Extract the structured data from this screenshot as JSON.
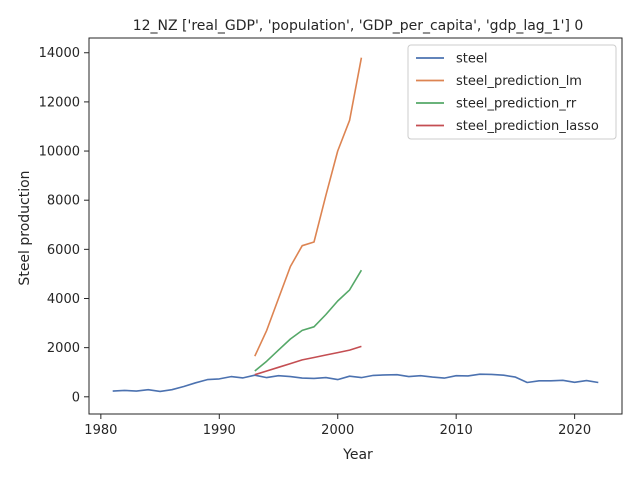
{
  "chart_data": {
    "type": "line",
    "title": "12_NZ ['real_GDP', 'population', 'GDP_per_capita', 'gdp_lag_1'] 0",
    "xlabel": "Year",
    "ylabel": "Steel production",
    "xlim": [
      1979,
      2024
    ],
    "ylim": [
      -700,
      14600
    ],
    "xticks": [
      1980,
      1990,
      2000,
      2010,
      2020
    ],
    "yticks": [
      0,
      2000,
      4000,
      6000,
      8000,
      10000,
      12000,
      14000
    ],
    "grid": false,
    "legend": {
      "position": "top-right"
    },
    "series": [
      {
        "name": "steel",
        "color": "#4c72b0",
        "x": [
          1981,
          1982,
          1983,
          1984,
          1985,
          1986,
          1987,
          1988,
          1989,
          1990,
          1991,
          1992,
          1993,
          1994,
          1995,
          1996,
          1997,
          1998,
          1999,
          2000,
          2001,
          2002,
          2003,
          2004,
          2005,
          2006,
          2007,
          2008,
          2009,
          2010,
          2011,
          2012,
          2013,
          2014,
          2015,
          2016,
          2017,
          2018,
          2019,
          2020,
          2021,
          2022
        ],
        "y": [
          230,
          260,
          230,
          290,
          220,
          290,
          420,
          570,
          700,
          730,
          820,
          770,
          880,
          780,
          860,
          820,
          760,
          750,
          780,
          700,
          840,
          780,
          870,
          890,
          900,
          820,
          860,
          800,
          760,
          860,
          850,
          920,
          910,
          880,
          800,
          580,
          650,
          650,
          670,
          590,
          660,
          580
        ]
      },
      {
        "name": "steel_prediction_lm",
        "color": "#dd8452",
        "x": [
          1993,
          1994,
          1995,
          1996,
          1997,
          1998,
          1999,
          2000,
          2001,
          2002
        ],
        "y": [
          1650,
          2700,
          4000,
          5300,
          6150,
          6300,
          8200,
          10000,
          11250,
          13800
        ]
      },
      {
        "name": "steel_prediction_rr",
        "color": "#55a868",
        "x": [
          1993,
          1994,
          1995,
          1996,
          1997,
          1998,
          1999,
          2000,
          2001,
          2002
        ],
        "y": [
          1050,
          1450,
          1900,
          2350,
          2700,
          2850,
          3350,
          3900,
          4350,
          5150
        ]
      },
      {
        "name": "steel_prediction_lasso",
        "color": "#c44e52",
        "x": [
          1993,
          1994,
          1995,
          1996,
          1997,
          1998,
          1999,
          2000,
          2001,
          2002
        ],
        "y": [
          900,
          1050,
          1200,
          1350,
          1500,
          1600,
          1700,
          1800,
          1900,
          2050
        ]
      }
    ]
  }
}
